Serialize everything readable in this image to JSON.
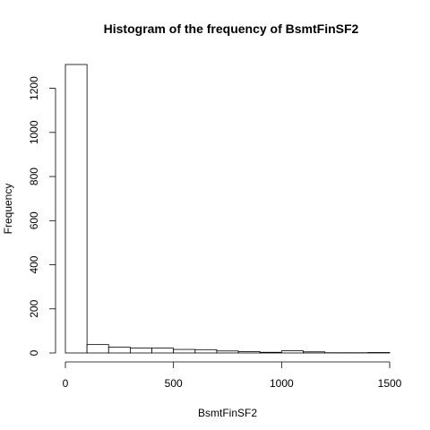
{
  "chart_data": {
    "type": "bar",
    "title": "Histogram of the frequency of BsmtFinSF2",
    "xlabel": "BsmtFinSF2",
    "ylabel": "Frequency",
    "bin_edges": [
      0,
      100,
      200,
      300,
      400,
      500,
      600,
      700,
      800,
      900,
      1000,
      1100,
      1200,
      1300,
      1400,
      1500
    ],
    "values": [
      1308,
      38,
      26,
      22,
      22,
      16,
      15,
      9,
      6,
      3,
      10,
      5,
      1,
      1,
      2
    ],
    "xlim": [
      0,
      1500
    ],
    "ylim": [
      0,
      1308
    ],
    "x_ticks": [
      0,
      500,
      1000,
      1500
    ],
    "y_ticks": [
      0,
      200,
      400,
      600,
      800,
      1000,
      1200
    ],
    "x_tick_labels": [
      "0",
      "500",
      "1000",
      "1500"
    ],
    "y_tick_labels": [
      "0",
      "200",
      "400",
      "600",
      "800",
      "1000",
      "1200"
    ],
    "grid": false,
    "fill_color": "#ffffff",
    "stroke_color": "#000000"
  }
}
